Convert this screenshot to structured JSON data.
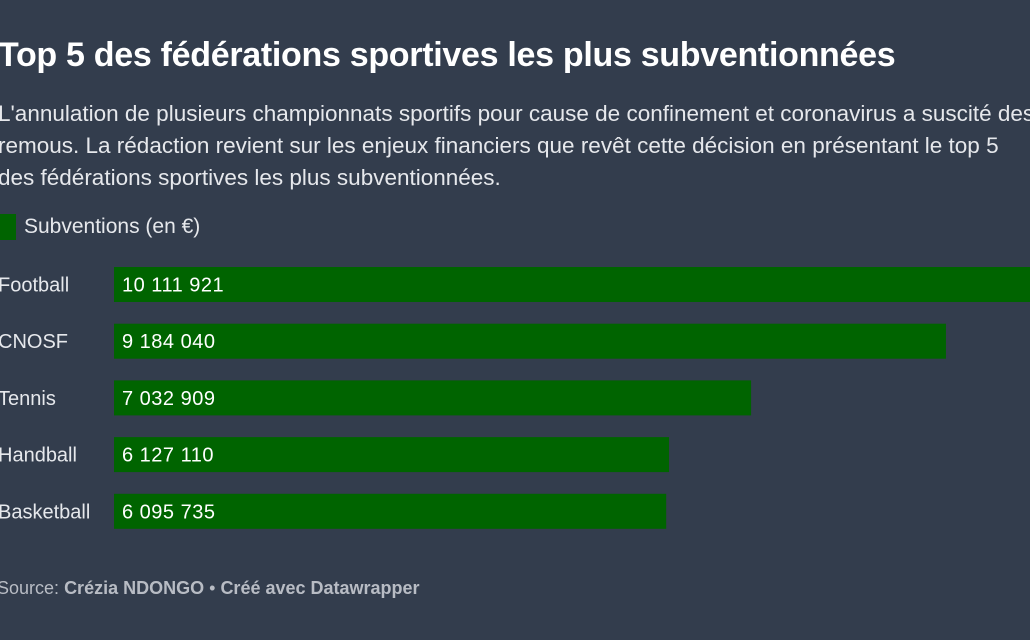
{
  "title": "Top 5 des fédérations sportives les plus subventionnées",
  "intro": "L'annulation de plusieurs championnats sportifs pour cause de confinement et coronavirus a suscité des remous. La rédaction revient sur les enjeux financiers que revêt cette décision en présentant le top 5 des fédérations sportives les plus subventionnées.",
  "legend": {
    "label": "Subventions (en €)",
    "color": "#006400"
  },
  "footer": {
    "source_label": "Source:",
    "source": "Crézia NDONGO",
    "separator": "•",
    "credit": "Créé avec Datawrapper"
  },
  "chart_data": {
    "type": "bar",
    "orientation": "horizontal",
    "categories": [
      "Football",
      "CNOSF",
      "Tennis",
      "Handball",
      "Basketball"
    ],
    "series": [
      {
        "name": "Subventions (en €)",
        "values": [
          10111921,
          9184040,
          7032909,
          6127110,
          6095735
        ],
        "value_labels": [
          "10 111 921",
          "9 184 040",
          "7 032 909",
          "6 127 110",
          "6 095 735"
        ],
        "color": "#006400"
      }
    ],
    "xlim": [
      0,
      10111921
    ],
    "grid": false,
    "legend": "top-left"
  }
}
